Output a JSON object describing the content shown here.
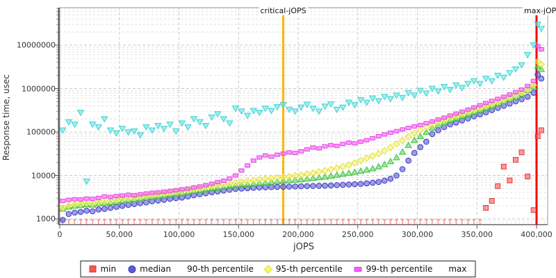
{
  "chart": {
    "y_axis_label": "Response time, usec",
    "x_axis_label": "jOPS",
    "critical_line": {
      "label": "critical-jOPS",
      "jops": 187500,
      "color": "#ffb400"
    },
    "max_line": {
      "label": "max-jOPS",
      "jops": 400000,
      "color": "#f40000"
    }
  },
  "chart_data": {
    "type": "scatter",
    "title": "",
    "xlabel": "jOPS",
    "ylabel": "Response time, usec",
    "x_scale": "linear",
    "y_scale": "log",
    "xlim": [
      0,
      410000
    ],
    "ylim": [
      745,
      73000000
    ],
    "grid": true,
    "legend_position": "bottom",
    "x_tick_values": [
      0,
      50000,
      100000,
      150000,
      200000,
      250000,
      300000,
      350000,
      400000
    ],
    "x_tick_labels": [
      "0",
      "50,000",
      "100,000",
      "150,000",
      "200,000",
      "250,000",
      "300,000",
      "350,000",
      "400,000"
    ],
    "y_tick_values": [
      1000,
      10000,
      100000,
      1000000,
      10000000
    ],
    "y_tick_labels": [
      "1000",
      "10000",
      "100000",
      "1000000",
      "10000000"
    ],
    "x": [
      2500,
      7500,
      12500,
      17500,
      22500,
      27500,
      32500,
      37500,
      42500,
      47500,
      52500,
      57500,
      62500,
      67500,
      72500,
      77500,
      82500,
      87500,
      92500,
      97500,
      102500,
      107500,
      112500,
      117500,
      122500,
      127500,
      132500,
      137500,
      142500,
      147500,
      152500,
      157500,
      162500,
      167500,
      172500,
      177500,
      182500,
      187500,
      192500,
      197500,
      202500,
      207500,
      212500,
      217500,
      222500,
      227500,
      232500,
      237500,
      242500,
      247500,
      252500,
      257500,
      262500,
      267500,
      272500,
      277500,
      282500,
      287500,
      292500,
      297500,
      302500,
      307500,
      312500,
      317500,
      322500,
      327500,
      332500,
      337500,
      342500,
      347500,
      352500,
      357500,
      362500,
      367500,
      372500,
      377500,
      382500,
      387500,
      392500,
      397500,
      401000,
      404000
    ],
    "series": [
      {
        "name": "min",
        "marker": "square",
        "color": "#f95454",
        "edge": "#e23b3b",
        "values": [
          900,
          900,
          900,
          900,
          900,
          900,
          900,
          900,
          900,
          900,
          900,
          900,
          900,
          900,
          900,
          900,
          900,
          900,
          900,
          900,
          900,
          900,
          900,
          900,
          900,
          900,
          900,
          900,
          900,
          900,
          900,
          900,
          900,
          900,
          900,
          900,
          900,
          900,
          900,
          900,
          900,
          900,
          900,
          900,
          900,
          900,
          900,
          900,
          900,
          900,
          900,
          900,
          900,
          900,
          900,
          900,
          900,
          900,
          900,
          900,
          900,
          900,
          900,
          900,
          900,
          900,
          900,
          900,
          900,
          900,
          900,
          1800,
          2600,
          5700,
          16000,
          7700,
          23000,
          34000,
          9500,
          1600,
          80000,
          110000
        ]
      },
      {
        "name": "median",
        "marker": "circle",
        "color": "#5b5bd6",
        "edge": "#3a3ac0",
        "values": [
          950,
          1300,
          1400,
          1450,
          1550,
          1500,
          1650,
          1700,
          1800,
          1900,
          2000,
          2100,
          2200,
          2300,
          2400,
          2550,
          2650,
          2750,
          2900,
          3000,
          3100,
          3300,
          3500,
          3700,
          3900,
          4100,
          4300,
          4500,
          4700,
          4900,
          5000,
          5100,
          5200,
          5300,
          5350,
          5400,
          5450,
          5500,
          5550,
          5600,
          5650,
          5700,
          5750,
          5800,
          5850,
          5900,
          6000,
          6100,
          6200,
          6300,
          6400,
          6600,
          6800,
          7100,
          7600,
          8400,
          10000,
          14000,
          22000,
          33000,
          45000,
          60000,
          90000,
          110000,
          130000,
          150000,
          165000,
          185000,
          205000,
          230000,
          255000,
          285000,
          320000,
          360000,
          400000,
          450000,
          510000,
          570000,
          650000,
          800000,
          2100000,
          1700000
        ]
      },
      {
        "name": "90-th percentile",
        "marker": "triangle-up",
        "color": "#5fd75f",
        "edge": "#3fbf3f",
        "values": [
          1700,
          1900,
          2000,
          2050,
          2150,
          2100,
          2250,
          2300,
          2400,
          2500,
          2650,
          2750,
          2850,
          2950,
          3100,
          3250,
          3350,
          3500,
          3650,
          3800,
          3950,
          4150,
          4350,
          4550,
          4750,
          5000,
          5200,
          5400,
          5700,
          5900,
          6100,
          6300,
          6500,
          6700,
          6900,
          7100,
          7300,
          7500,
          7700,
          7900,
          8100,
          8400,
          8700,
          9000,
          9400,
          9800,
          10300,
          10800,
          11400,
          12000,
          12700,
          13500,
          14500,
          16000,
          18000,
          21000,
          26000,
          35000,
          50000,
          65000,
          80000,
          100000,
          125000,
          145000,
          165000,
          185000,
          205000,
          230000,
          255000,
          285000,
          320000,
          360000,
          400000,
          450000,
          510000,
          580000,
          660000,
          760000,
          900000,
          1100000,
          3300000,
          2800000
        ]
      },
      {
        "name": "95-th percentile",
        "marker": "diamond",
        "color": "#f7f760",
        "edge": "#dede3e",
        "values": [
          1800,
          2050,
          2150,
          2250,
          2350,
          2300,
          2450,
          2550,
          2650,
          2750,
          2900,
          3000,
          3100,
          3250,
          3400,
          3550,
          3700,
          3850,
          4000,
          4200,
          4400,
          4600,
          4800,
          5000,
          5300,
          5600,
          5900,
          6200,
          6500,
          6800,
          7100,
          7400,
          7700,
          8000,
          8300,
          8600,
          8900,
          9200,
          9500,
          9900,
          10300,
          10800,
          11400,
          12100,
          12900,
          13800,
          14800,
          16000,
          17500,
          19500,
          22000,
          25000,
          28000,
          32000,
          37000,
          44000,
          53000,
          64000,
          78000,
          95000,
          110000,
          130000,
          150000,
          170000,
          190000,
          210000,
          235000,
          260000,
          290000,
          320000,
          355000,
          395000,
          440000,
          490000,
          550000,
          620000,
          700000,
          800000,
          950000,
          1200000,
          4200000,
          3600000
        ]
      },
      {
        "name": "99-th percentile",
        "marker": "rect",
        "color": "#f95df9",
        "edge": "#e53ce5",
        "values": [
          2600,
          2750,
          2850,
          2800,
          2950,
          2900,
          3050,
          3300,
          3200,
          3350,
          3450,
          3600,
          3500,
          3700,
          3850,
          4000,
          4100,
          4250,
          4400,
          4600,
          4800,
          5000,
          5300,
          5600,
          6000,
          6500,
          7000,
          7600,
          8500,
          10000,
          13000,
          17000,
          22000,
          26000,
          29000,
          27000,
          30000,
          32000,
          34000,
          33000,
          36000,
          40000,
          44000,
          42000,
          47000,
          50000,
          48000,
          53000,
          57000,
          55000,
          60000,
          65000,
          72000,
          80000,
          88000,
          97000,
          105000,
          115000,
          125000,
          135000,
          145000,
          160000,
          175000,
          195000,
          215000,
          240000,
          265000,
          295000,
          330000,
          370000,
          415000,
          465000,
          520000,
          580000,
          650000,
          730000,
          830000,
          950000,
          1150000,
          1500000,
          9500000,
          8000000
        ]
      },
      {
        "name": "max",
        "marker": "triangle-down",
        "color": "#5fe8e8",
        "edge": "#3fd0d0",
        "values": [
          110000,
          170000,
          150000,
          280000,
          7300,
          150000,
          130000,
          200000,
          110000,
          95000,
          120000,
          100000,
          105000,
          85000,
          130000,
          110000,
          140000,
          120000,
          150000,
          105000,
          160000,
          130000,
          200000,
          170000,
          140000,
          220000,
          260000,
          200000,
          160000,
          350000,
          300000,
          240000,
          310000,
          280000,
          350000,
          310000,
          380000,
          420000,
          330000,
          300000,
          370000,
          430000,
          350000,
          300000,
          390000,
          440000,
          330000,
          370000,
          480000,
          420000,
          550000,
          480000,
          600000,
          520000,
          650000,
          580000,
          700000,
          620000,
          800000,
          700000,
          900000,
          780000,
          1000000,
          870000,
          1100000,
          950000,
          1200000,
          1050000,
          1300000,
          1500000,
          1300000,
          1700000,
          1500000,
          2000000,
          1800000,
          2300000,
          2800000,
          3500000,
          6000000,
          10000000,
          30000000,
          24000000
        ]
      }
    ]
  }
}
